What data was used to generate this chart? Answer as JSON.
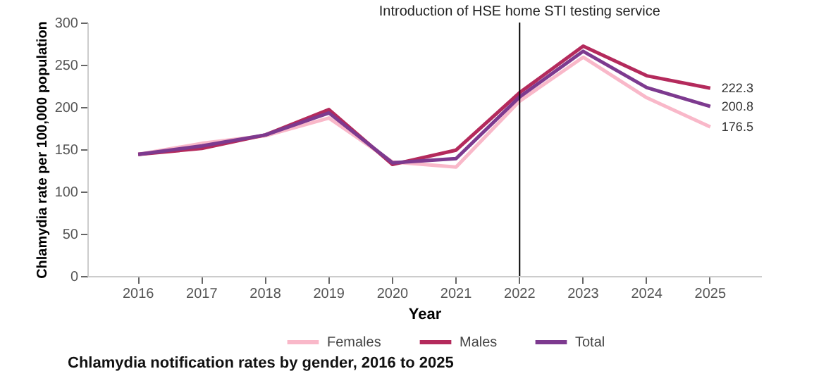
{
  "chart_data": {
    "type": "line",
    "title": "Chlamydia notification rates by gender, 2016 to 2025",
    "xlabel": "Year",
    "ylabel": "Chlamydia rate per 100,000 population",
    "categories": [
      "2016",
      "2017",
      "2018",
      "2019",
      "2020",
      "2021",
      "2022",
      "2023",
      "2024",
      "2025"
    ],
    "series": [
      {
        "name": "Females",
        "color": "#f9b8c9",
        "values": [
          144,
          157,
          166,
          187,
          135,
          129,
          207,
          259,
          211,
          176.5
        ],
        "value_labels": [
          null,
          null,
          null,
          null,
          null,
          null,
          null,
          null,
          null,
          "176.5"
        ]
      },
      {
        "name": "Males",
        "color": "#b42a5c",
        "values": [
          144,
          151,
          167,
          197,
          132,
          149,
          217,
          272,
          237,
          222.3
        ],
        "value_labels": [
          null,
          null,
          null,
          null,
          null,
          null,
          null,
          null,
          null,
          "222.3"
        ]
      },
      {
        "name": "Total",
        "color": "#7d3a8f",
        "values": [
          144,
          154,
          167,
          193,
          134,
          139,
          212,
          266,
          223,
          200.8
        ],
        "value_labels": [
          null,
          null,
          null,
          null,
          null,
          null,
          null,
          null,
          null,
          "200.8"
        ]
      }
    ],
    "ylim": [
      0,
      300
    ],
    "yticks": [
      0,
      50,
      100,
      150,
      200,
      250,
      300
    ],
    "ref_lines": [
      {
        "axis": "x",
        "value": "2022",
        "label": "Introduction of HSE home STI testing service",
        "color": "#000000"
      }
    ],
    "grid": false,
    "legend": "bottom",
    "marker": "none",
    "line_style": "solid"
  }
}
